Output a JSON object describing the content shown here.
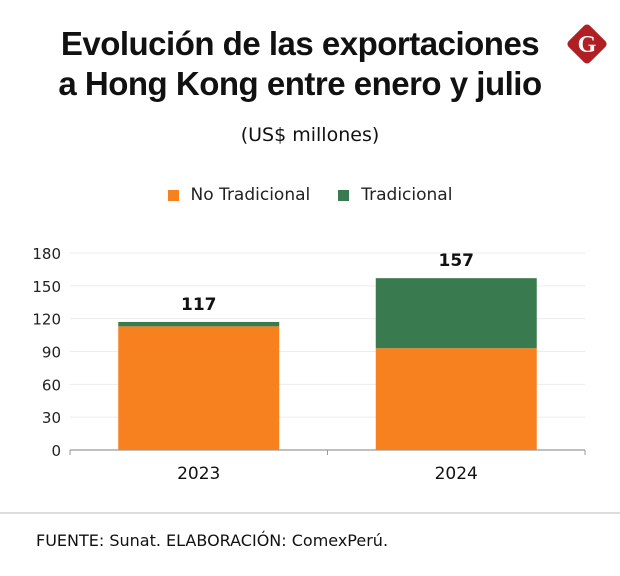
{
  "header": {
    "title_line1": "Evolución de las exportaciones",
    "title_line2": "a Hong Kong entre enero y julio",
    "subtitle": "(US$ millones)",
    "logo": {
      "icon": "gestion-g-logo-icon",
      "letter": "G",
      "color": "#b01f24"
    }
  },
  "legend": [
    {
      "label": "No Tradicional",
      "color": "#f7811e"
    },
    {
      "label": "Tradicional",
      "color": "#3a7a4f"
    }
  ],
  "chart_data": {
    "type": "bar",
    "stacked": true,
    "title": "Evolución de las exportaciones a Hong Kong entre enero y julio",
    "subtitle": "(US$ millones)",
    "xlabel": "",
    "ylabel": "",
    "categories": [
      "2023",
      "2024"
    ],
    "series": [
      {
        "name": "No Tradicional",
        "color": "#f7811e",
        "values": [
          113,
          93
        ]
      },
      {
        "name": "Tradicional",
        "color": "#3a7a4f",
        "values": [
          4,
          64
        ]
      }
    ],
    "totals": [
      117,
      157
    ],
    "total_labels": [
      "117",
      "157"
    ],
    "ylim": [
      0,
      180
    ],
    "yticks": [
      0,
      30,
      60,
      90,
      120,
      150,
      180
    ],
    "ytick_labels": [
      "0",
      "30",
      "60",
      "90",
      "120",
      "150",
      "180"
    ],
    "grid": true,
    "legend_position": "top-center"
  },
  "footer": {
    "source": "FUENTE: Sunat. ELABORACIÓN: ComexPerú."
  }
}
